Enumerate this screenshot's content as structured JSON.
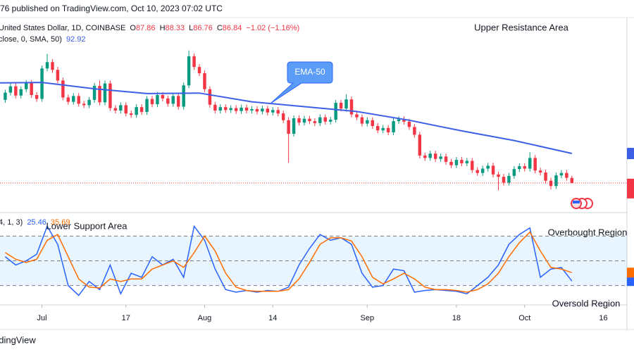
{
  "header": {
    "text": "76 published on TradingView.com, Oct 10, 2023 07:02 UTC"
  },
  "footer": {
    "text": "adingView"
  },
  "chart_data": [
    {
      "type": "candlestick",
      "name": "United States Dollar, 1D, COINBASE",
      "ohlc_labels": [
        "O",
        "H",
        "L",
        "C"
      ],
      "change_label": "−1.02 (−1.16%)",
      "up_color": "#089981",
      "down_color": "#f23645",
      "xlim": [
        -8,
        111.5
      ],
      "ylim": [
        81,
        121
      ],
      "x": [
        -7,
        -6,
        -5,
        -4,
        -3,
        -2,
        -1,
        0,
        1,
        2,
        3,
        4,
        5,
        6,
        7,
        8,
        9,
        10,
        11,
        12,
        13,
        14,
        15,
        16,
        17,
        18,
        19,
        20,
        21,
        22,
        23,
        24,
        25,
        26,
        27,
        28,
        29,
        30,
        31,
        32,
        33,
        34,
        35,
        36,
        37,
        38,
        39,
        40,
        41,
        42,
        43,
        44,
        45,
        46,
        47,
        48,
        49,
        50,
        51,
        52,
        53,
        54,
        55,
        56,
        57,
        58,
        59,
        60,
        61,
        62,
        63,
        64,
        65,
        66,
        67,
        68,
        69,
        70,
        71,
        72,
        73,
        74,
        75,
        76,
        77,
        78,
        79,
        80,
        81,
        82,
        83,
        84,
        85,
        86,
        87,
        88,
        89,
        90,
        91,
        92,
        93,
        94,
        95,
        96,
        97,
        98,
        99,
        100,
        101
      ],
      "open": [
        104.0,
        105.5,
        106.8,
        104.9,
        106.2,
        107.5,
        105.0,
        104.2,
        110.5,
        111.8,
        110.2,
        108.0,
        104.5,
        103.6,
        104.8,
        103.2,
        102.9,
        104.0,
        106.9,
        103.5,
        107.4,
        102.3,
        101.8,
        102.9,
        101.2,
        100.9,
        102.5,
        101.5,
        104.2,
        103.1,
        105.0,
        104.3,
        103.2,
        104.8,
        102.6,
        107.0,
        113.0,
        110.8,
        109.5,
        106.2,
        103.0,
        101.8,
        102.5,
        101.9,
        102.3,
        101.7,
        102.4,
        101.8,
        102.1,
        101.6,
        102.2,
        101.4,
        101.9,
        101.2,
        99.8,
        97.0,
        100.2,
        99.3,
        100.1,
        99.6,
        99.2,
        100.4,
        99.5,
        99.9,
        103.4,
        102.2,
        104.1,
        101.0,
        100.4,
        99.1,
        99.8,
        98.6,
        97.7,
        98.2,
        97.3,
        99.6,
        100.0,
        99.5,
        98.4,
        96.8,
        92.5,
        92.0,
        92.9,
        91.8,
        92.3,
        91.2,
        90.5,
        91.6,
        90.9,
        91.4,
        89.5,
        88.9,
        89.8,
        90.4,
        88.6,
        88.1,
        86.9,
        88.3,
        89.7,
        90.3,
        89.8,
        92.0,
        89.4,
        89.0,
        87.3,
        86.2,
        88.4,
        88.9,
        87.86
      ],
      "high": [
        106.1,
        107.4,
        107.4,
        106.8,
        108.1,
        108.1,
        105.6,
        111.1,
        113.5,
        112.4,
        110.8,
        108.6,
        105.1,
        105.4,
        105.4,
        103.8,
        104.6,
        107.5,
        108.0,
        108.0,
        108.0,
        102.9,
        103.5,
        103.5,
        101.8,
        103.1,
        103.1,
        104.8,
        104.8,
        105.6,
        105.6,
        104.9,
        105.4,
        105.4,
        107.6,
        114.2,
        113.6,
        111.4,
        110.1,
        106.8,
        103.6,
        103.1,
        103.1,
        102.9,
        102.9,
        103.0,
        103.0,
        102.7,
        102.7,
        102.8,
        102.8,
        102.5,
        102.5,
        101.8,
        100.4,
        100.8,
        100.8,
        100.7,
        100.7,
        100.2,
        101.0,
        101.0,
        100.5,
        104.0,
        104.0,
        105.2,
        104.7,
        101.6,
        101.0,
        100.4,
        100.4,
        99.2,
        98.8,
        98.8,
        100.2,
        100.6,
        100.6,
        100.1,
        99.0,
        97.4,
        93.1,
        93.5,
        93.5,
        92.9,
        92.9,
        91.8,
        92.2,
        92.2,
        92.0,
        92.0,
        90.1,
        90.4,
        91.0,
        91.0,
        89.2,
        88.7,
        88.9,
        90.3,
        90.9,
        90.9,
        93.2,
        92.6,
        90.0,
        89.6,
        87.9,
        89.0,
        89.5,
        89.5,
        88.33
      ],
      "low": [
        103.4,
        104.9,
        104.3,
        104.3,
        105.6,
        104.4,
        103.6,
        103.6,
        109.9,
        109.6,
        107.4,
        103.9,
        103.0,
        103.0,
        102.6,
        102.3,
        102.3,
        103.4,
        102.9,
        102.9,
        101.7,
        101.2,
        101.2,
        100.6,
        100.3,
        100.3,
        100.9,
        100.9,
        102.5,
        102.5,
        103.7,
        102.6,
        102.6,
        102.0,
        102.0,
        106.4,
        110.2,
        108.9,
        105.6,
        102.4,
        101.2,
        101.2,
        101.3,
        101.3,
        101.1,
        101.1,
        101.2,
        101.2,
        101.0,
        101.0,
        100.8,
        100.8,
        100.6,
        99.2,
        91.0,
        96.4,
        98.7,
        98.7,
        99.0,
        98.6,
        98.6,
        98.9,
        98.9,
        99.3,
        101.6,
        101.6,
        100.4,
        99.8,
        98.5,
        98.5,
        98.0,
        97.1,
        97.1,
        96.7,
        96.7,
        99.0,
        98.9,
        97.8,
        96.2,
        91.9,
        91.4,
        91.4,
        91.2,
        91.2,
        90.6,
        89.9,
        89.9,
        90.3,
        90.3,
        88.9,
        88.3,
        88.3,
        89.2,
        88.0,
        85.3,
        86.3,
        86.3,
        87.7,
        89.1,
        89.2,
        89.2,
        88.8,
        88.4,
        86.7,
        85.5,
        85.6,
        87.8,
        87.3,
        86.76
      ],
      "close": [
        105.5,
        106.8,
        104.9,
        106.2,
        107.5,
        105.0,
        104.2,
        110.5,
        111.8,
        110.2,
        108.0,
        104.5,
        103.6,
        104.8,
        103.2,
        102.9,
        104.0,
        106.9,
        103.5,
        107.4,
        102.3,
        101.8,
        102.9,
        101.2,
        100.9,
        102.5,
        101.5,
        104.2,
        103.1,
        105.0,
        104.3,
        103.2,
        104.8,
        102.6,
        107.0,
        113.0,
        110.8,
        109.5,
        106.2,
        103.0,
        101.8,
        102.5,
        101.9,
        102.3,
        101.7,
        102.4,
        101.8,
        102.1,
        101.6,
        102.2,
        101.4,
        101.9,
        101.2,
        99.8,
        97.0,
        100.2,
        99.3,
        100.1,
        99.6,
        99.2,
        100.4,
        99.5,
        99.9,
        103.4,
        102.2,
        104.1,
        101.0,
        100.4,
        99.1,
        99.8,
        98.6,
        97.7,
        98.2,
        97.3,
        99.6,
        100.0,
        99.5,
        98.4,
        96.8,
        92.5,
        92.0,
        92.9,
        91.8,
        92.3,
        91.2,
        90.5,
        91.6,
        90.9,
        91.4,
        89.5,
        88.9,
        89.8,
        90.4,
        88.6,
        88.1,
        86.9,
        88.3,
        89.7,
        90.3,
        89.8,
        92.0,
        89.4,
        89.0,
        87.3,
        86.2,
        88.4,
        88.9,
        87.9,
        86.84
      ],
      "overlay": {
        "name": "close, 0, SMA, 50)",
        "color": "#3d5fe6",
        "x": [
          -8,
          0,
          10,
          20,
          30,
          40,
          50,
          60,
          70,
          80,
          90,
          101
        ],
        "values": [
          107.5,
          107.6,
          106.3,
          105.3,
          105.4,
          103.6,
          102.6,
          101.6,
          99.8,
          97.6,
          95.6,
          92.92
        ]
      },
      "annotations": [
        {
          "text": "Upper Resistance Area"
        },
        {
          "text": "EMA-50"
        }
      ]
    },
    {
      "type": "line",
      "name": "4, 1, 3)",
      "xlim": [
        -8,
        111.5
      ],
      "ylim": [
        0,
        100
      ],
      "levels": [
        80,
        50,
        20
      ],
      "xticks": [
        {
          "value": 0,
          "label": "Jul"
        },
        {
          "value": 16,
          "label": "17"
        },
        {
          "value": 31,
          "label": "Aug"
        },
        {
          "value": 44,
          "label": "14"
        },
        {
          "value": 62,
          "label": "Sep"
        },
        {
          "value": 79,
          "label": "18"
        },
        {
          "value": 92,
          "label": "Oct"
        },
        {
          "value": 107,
          "label": "16"
        }
      ],
      "x": [
        -7,
        -5,
        -3,
        -1,
        1,
        3,
        5,
        7,
        9,
        11,
        13,
        15,
        17,
        19,
        21,
        23,
        25,
        27,
        29,
        31,
        33,
        35,
        37,
        39,
        41,
        43,
        45,
        47,
        49,
        51,
        53,
        55,
        57,
        59,
        61,
        63,
        65,
        67,
        69,
        71,
        73,
        75,
        77,
        79,
        81,
        83,
        85,
        87,
        89,
        91,
        93,
        95,
        97,
        99,
        101
      ],
      "series": [
        {
          "color": "#2962ff",
          "values": [
            55,
            45,
            50,
            58,
            92,
            70,
            20,
            8,
            25,
            15,
            45,
            10,
            35,
            30,
            55,
            45,
            52,
            30,
            92,
            75,
            40,
            15,
            12,
            14,
            12,
            14,
            13,
            18,
            45,
            65,
            82,
            75,
            78,
            70,
            35,
            18,
            20,
            40,
            38,
            12,
            14,
            15,
            14,
            13,
            10,
            20,
            30,
            45,
            70,
            82,
            90,
            30,
            40,
            42,
            25.46
          ]
        },
        {
          "color": "#ff6d00",
          "values": [
            60,
            52,
            48,
            52,
            75,
            82,
            55,
            28,
            18,
            17,
            28,
            25,
            28,
            28,
            40,
            45,
            50,
            42,
            60,
            80,
            62,
            35,
            18,
            14,
            13,
            13,
            13,
            15,
            28,
            48,
            70,
            78,
            78,
            74,
            55,
            30,
            22,
            28,
            35,
            28,
            18,
            15,
            15,
            14,
            12,
            15,
            22,
            35,
            55,
            72,
            85,
            62,
            42,
            40,
            35.69
          ]
        }
      ],
      "annotations": [
        {
          "text": "Lower Support Area"
        },
        {
          "text": "Overbought Region"
        },
        {
          "text": "Oversold Region"
        }
      ]
    }
  ]
}
